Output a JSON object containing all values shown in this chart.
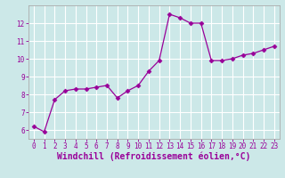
{
  "x": [
    0,
    1,
    2,
    3,
    4,
    5,
    6,
    7,
    8,
    9,
    10,
    11,
    12,
    13,
    14,
    15,
    16,
    17,
    18,
    19,
    20,
    21,
    22,
    23
  ],
  "y": [
    6.2,
    5.9,
    7.7,
    8.2,
    8.3,
    8.3,
    8.4,
    8.5,
    7.8,
    8.2,
    8.5,
    9.3,
    9.9,
    12.5,
    12.3,
    12.0,
    12.0,
    9.9,
    9.9,
    10.0,
    10.2,
    10.3,
    10.5,
    10.7
  ],
  "line_color": "#990099",
  "marker": "D",
  "marker_size": 2.5,
  "background_color": "#cce8e8",
  "grid_color": "#b0d0d0",
  "xlabel": "Windchill (Refroidissement éolien,°C)",
  "ylabel": "",
  "ylim": [
    5.5,
    13.0
  ],
  "xlim": [
    -0.5,
    23.5
  ],
  "yticks": [
    6,
    7,
    8,
    9,
    10,
    11,
    12
  ],
  "xticks": [
    0,
    1,
    2,
    3,
    4,
    5,
    6,
    7,
    8,
    9,
    10,
    11,
    12,
    13,
    14,
    15,
    16,
    17,
    18,
    19,
    20,
    21,
    22,
    23
  ],
  "tick_color": "#990099",
  "label_color": "#990099",
  "tick_fontsize": 5.5,
  "xlabel_fontsize": 7.0,
  "spine_color": "#aaaaaa"
}
